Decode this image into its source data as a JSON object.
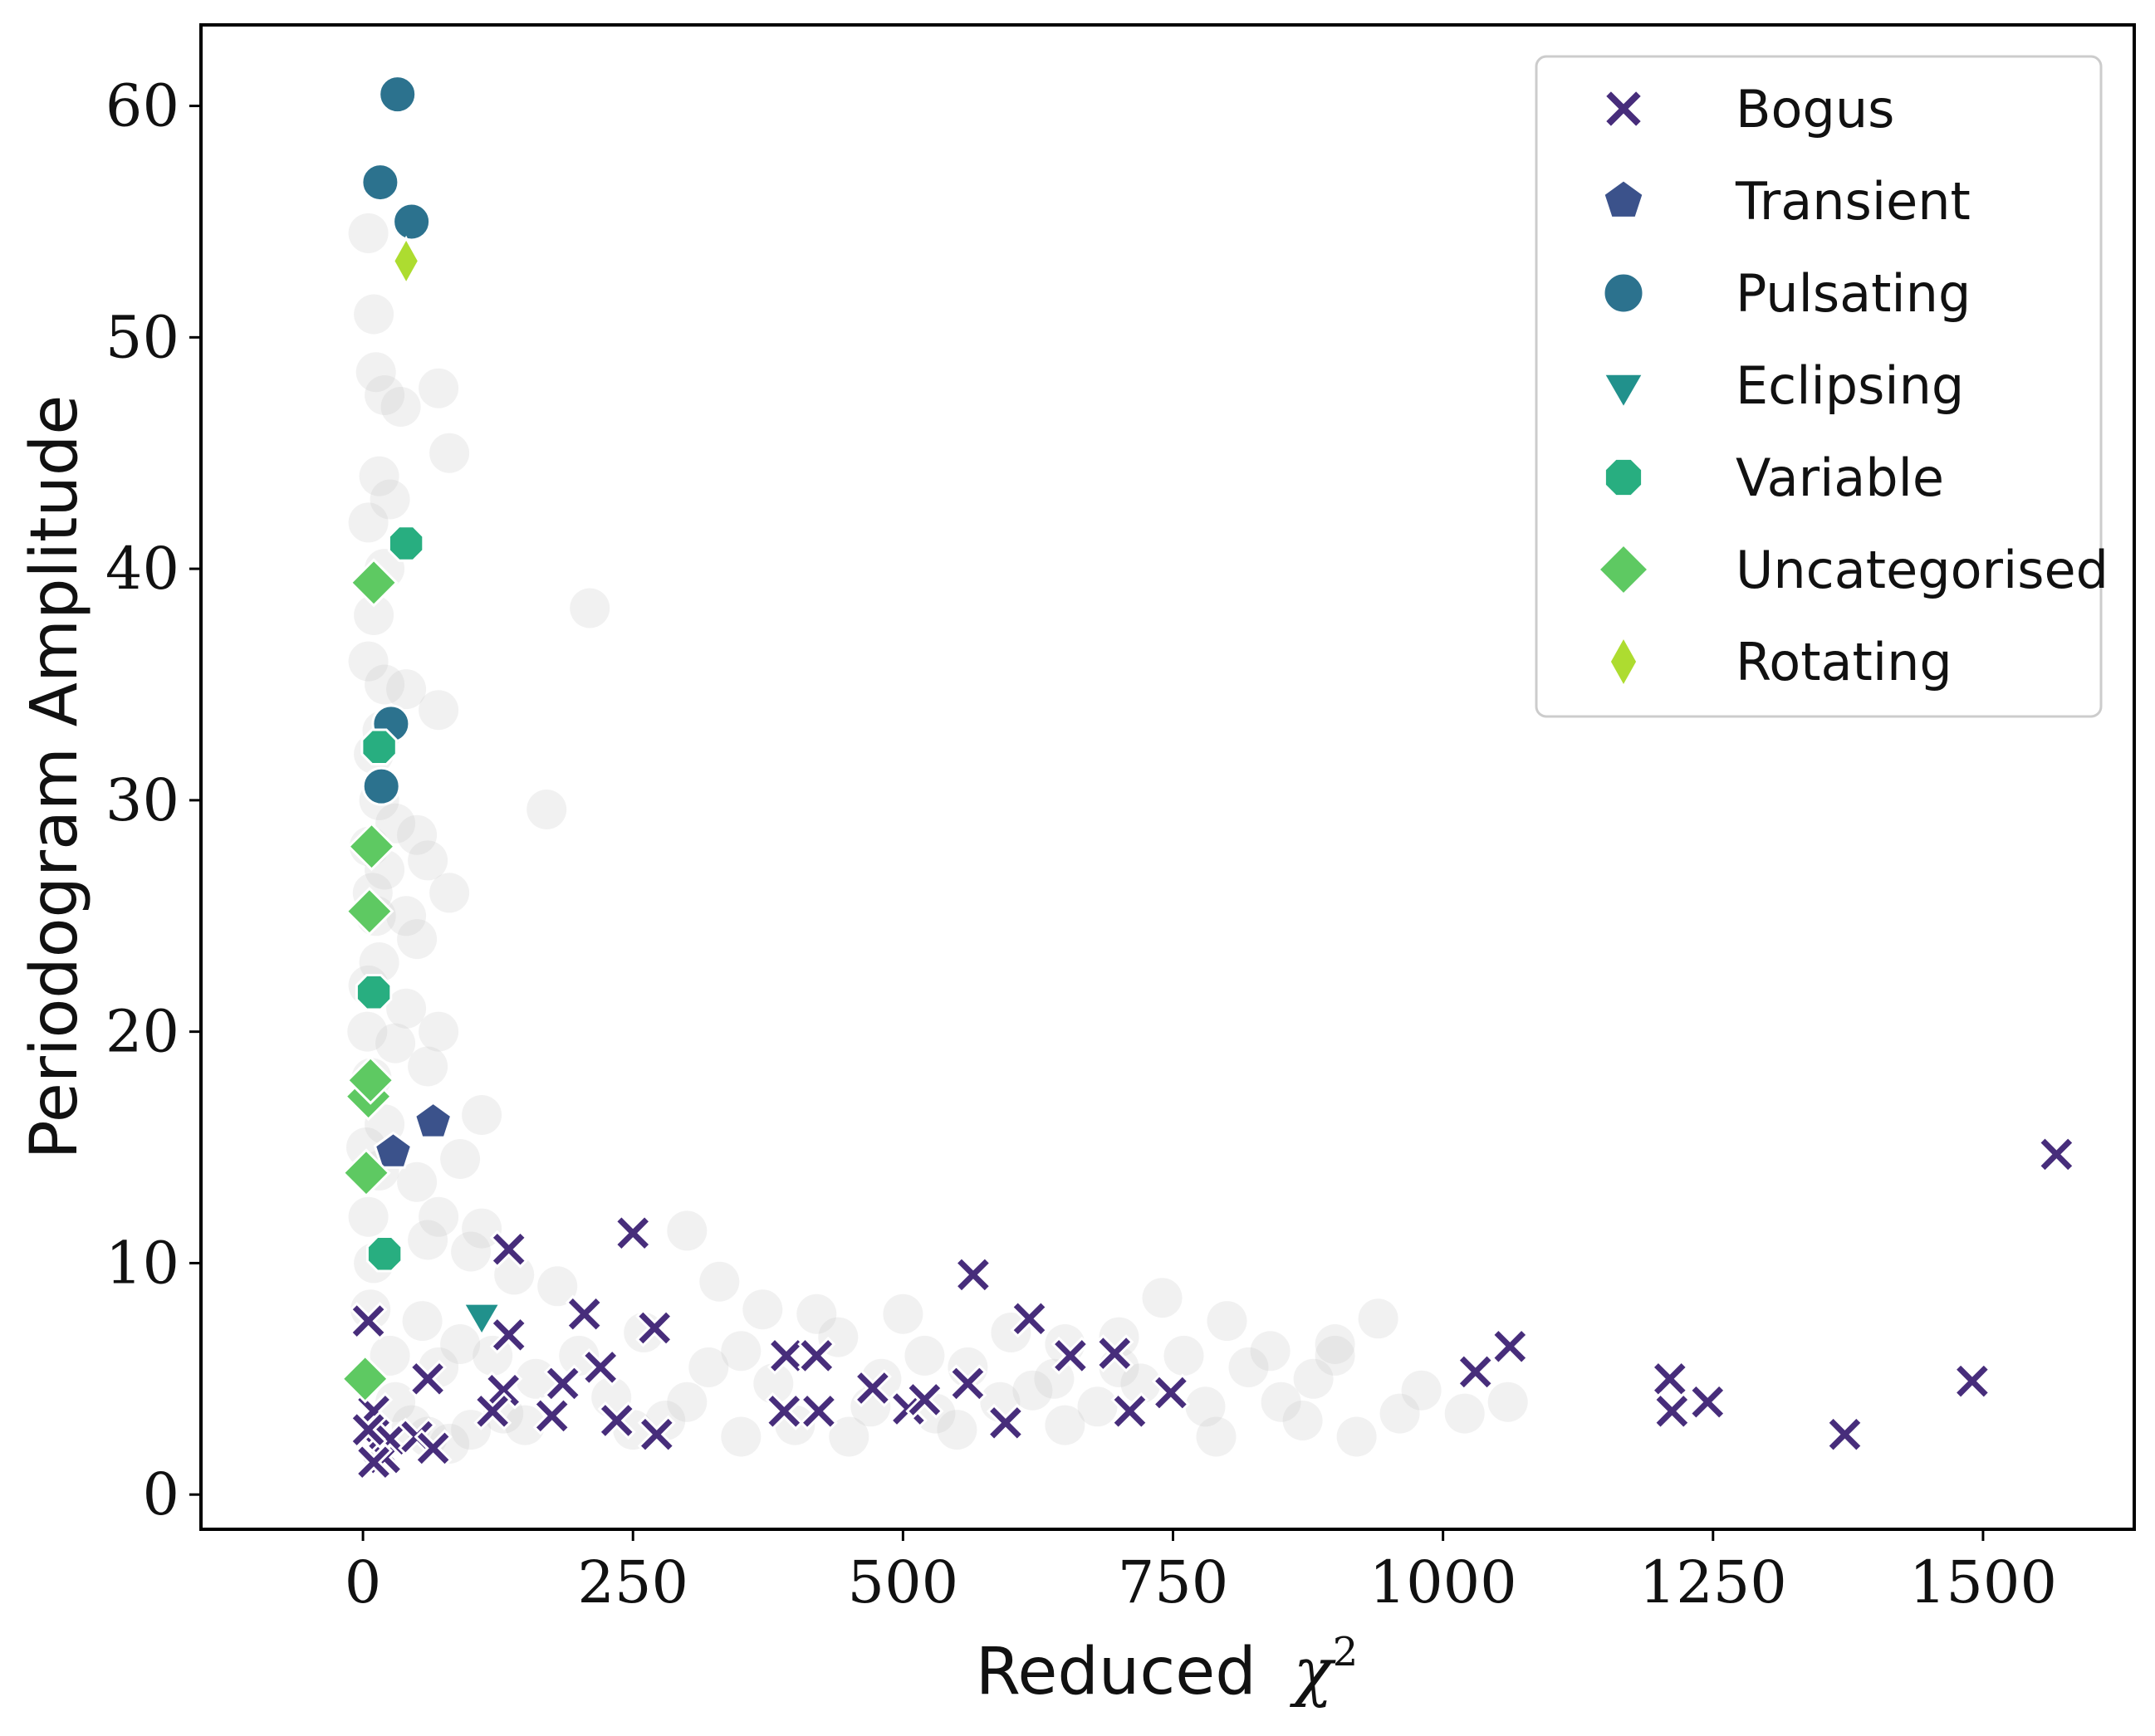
{
  "chart_data": {
    "type": "scatter",
    "xlabel": "Reduced",
    "xlabel_math": "χ",
    "xlabel_exp": "2",
    "ylabel": "Periodogram Amplitude",
    "xlim": [
      -150,
      1640
    ],
    "ylim": [
      -1.5,
      63.5
    ],
    "xticks": [
      0,
      250,
      500,
      750,
      1000,
      1250,
      1500
    ],
    "yticks": [
      0,
      10,
      20,
      30,
      40,
      50,
      60
    ],
    "grid": false,
    "legend_position": "top-right",
    "background_points": {
      "color": "#bdbdbd",
      "points": [
        [
          5,
          54.5
        ],
        [
          10,
          51
        ],
        [
          12,
          48.5
        ],
        [
          20,
          47.5
        ],
        [
          35,
          47
        ],
        [
          70,
          47.8
        ],
        [
          80,
          45
        ],
        [
          15,
          44
        ],
        [
          25,
          43
        ],
        [
          5,
          42
        ],
        [
          20,
          40
        ],
        [
          10,
          38
        ],
        [
          210,
          38.3
        ],
        [
          5,
          36
        ],
        [
          20,
          35
        ],
        [
          40,
          34.8
        ],
        [
          70,
          33.9
        ],
        [
          10,
          32
        ],
        [
          15,
          30
        ],
        [
          170,
          29.6
        ],
        [
          30,
          29
        ],
        [
          50,
          28.5
        ],
        [
          60,
          27.4
        ],
        [
          20,
          27
        ],
        [
          80,
          26
        ],
        [
          40,
          25
        ],
        [
          50,
          24
        ],
        [
          15,
          23
        ],
        [
          5,
          22
        ],
        [
          40,
          21
        ],
        [
          70,
          20
        ],
        [
          30,
          19.5
        ],
        [
          60,
          18.5
        ],
        [
          110,
          16.4
        ],
        [
          20,
          16
        ],
        [
          90,
          14.5
        ],
        [
          50,
          13.5
        ],
        [
          70,
          12
        ],
        [
          110,
          11.5
        ],
        [
          60,
          11
        ],
        [
          100,
          10.5
        ],
        [
          140,
          9.5
        ],
        [
          180,
          9
        ],
        [
          300,
          11.4
        ],
        [
          330,
          9.2
        ],
        [
          370,
          8
        ],
        [
          420,
          7.8
        ],
        [
          500,
          7.8
        ],
        [
          740,
          8.5
        ],
        [
          800,
          7.5
        ],
        [
          940,
          7.6
        ],
        [
          900,
          6.5
        ],
        [
          600,
          7
        ],
        [
          650,
          6.5
        ],
        [
          700,
          6.8
        ],
        [
          760,
          6
        ],
        [
          820,
          5.5
        ],
        [
          880,
          5
        ],
        [
          980,
          4.5
        ],
        [
          1060,
          4
        ],
        [
          1020,
          3.5
        ],
        [
          920,
          2.5
        ],
        [
          790,
          2.5
        ],
        [
          650,
          3
        ],
        [
          550,
          2.8
        ],
        [
          450,
          2.5
        ],
        [
          350,
          2.5
        ],
        [
          250,
          2.8
        ],
        [
          150,
          3
        ],
        [
          200,
          6
        ],
        [
          260,
          7
        ],
        [
          320,
          5.5
        ],
        [
          380,
          4.8
        ],
        [
          440,
          6.8
        ],
        [
          480,
          5
        ],
        [
          520,
          6
        ],
        [
          560,
          5.5
        ],
        [
          620,
          4.5
        ],
        [
          680,
          3.8
        ],
        [
          720,
          4.8
        ],
        [
          850,
          4
        ],
        [
          960,
          3.5
        ],
        [
          840,
          6.2
        ],
        [
          300,
          4
        ],
        [
          400,
          3
        ],
        [
          470,
          3.8
        ],
        [
          530,
          3.5
        ],
        [
          590,
          4
        ],
        [
          640,
          5
        ],
        [
          700,
          5.5
        ],
        [
          780,
          3.8
        ],
        [
          870,
          3.2
        ],
        [
          120,
          6
        ],
        [
          160,
          5
        ],
        [
          230,
          4.2
        ],
        [
          280,
          3.2
        ],
        [
          350,
          6.2
        ],
        [
          900,
          6
        ],
        [
          10,
          10
        ],
        [
          5,
          12
        ],
        [
          15,
          14
        ],
        [
          8,
          18
        ],
        [
          12,
          25
        ],
        [
          6,
          28
        ],
        [
          18,
          33
        ],
        [
          9,
          26
        ],
        [
          4,
          20
        ],
        [
          3,
          15
        ],
        [
          7,
          8
        ],
        [
          25,
          6
        ],
        [
          30,
          4
        ],
        [
          45,
          3
        ],
        [
          60,
          2.5
        ],
        [
          80,
          2.2
        ],
        [
          100,
          2.8
        ],
        [
          130,
          3.5
        ],
        [
          70,
          5.5
        ],
        [
          90,
          6.5
        ],
        [
          55,
          7.5
        ]
      ]
    },
    "series": [
      {
        "name": "Bogus",
        "marker": "x",
        "color": "#472d7b",
        "points": [
          [
            5,
            7.5
          ],
          [
            60,
            5
          ],
          [
            135,
            10.6
          ],
          [
            135,
            6.9
          ],
          [
            130,
            4.5
          ],
          [
            120,
            3.6
          ],
          [
            175,
            3.4
          ],
          [
            185,
            4.8
          ],
          [
            205,
            7.8
          ],
          [
            220,
            5.5
          ],
          [
            235,
            3.2
          ],
          [
            250,
            11.3
          ],
          [
            270,
            7.2
          ],
          [
            272,
            2.6
          ],
          [
            390,
            3.6
          ],
          [
            392,
            6
          ],
          [
            420,
            6
          ],
          [
            422,
            3.6
          ],
          [
            472,
            4.6
          ],
          [
            505,
            3.7
          ],
          [
            520,
            4.1
          ],
          [
            565,
            9.5
          ],
          [
            560,
            4.8
          ],
          [
            595,
            3.1
          ],
          [
            617,
            7.6
          ],
          [
            655,
            6
          ],
          [
            696,
            6.1
          ],
          [
            710,
            3.6
          ],
          [
            748,
            4.4
          ],
          [
            1030,
            5.3
          ],
          [
            1062,
            6.4
          ],
          [
            1210,
            5
          ],
          [
            1212,
            3.6
          ],
          [
            1245,
            4
          ],
          [
            1372,
            2.6
          ],
          [
            1490,
            4.9
          ],
          [
            1568,
            14.7
          ],
          [
            10,
            3.6
          ],
          [
            15,
            2
          ],
          [
            20,
            1.6
          ],
          [
            25,
            2.4
          ],
          [
            10,
            1.4
          ],
          [
            50,
            2.5
          ],
          [
            65,
            2
          ],
          [
            5,
            2.8
          ]
        ]
      },
      {
        "name": "Transient",
        "marker": "pentagon",
        "color": "#3b528b",
        "points": [
          [
            65,
            16.1
          ],
          [
            28,
            14.8
          ]
        ]
      },
      {
        "name": "Pulsating",
        "marker": "circle",
        "color": "#2c728e",
        "points": [
          [
            32,
            60.5
          ],
          [
            16,
            56.7
          ],
          [
            45,
            55
          ],
          [
            26,
            33.3
          ],
          [
            17,
            30.6
          ]
        ]
      },
      {
        "name": "Eclipsing",
        "marker": "triangle-down",
        "color": "#21918c",
        "points": [
          [
            110,
            7.8
          ]
        ]
      },
      {
        "name": "Variable",
        "marker": "octagon",
        "color": "#28ae80",
        "points": [
          [
            40,
            41.1
          ],
          [
            15,
            32.3
          ],
          [
            10,
            21.7
          ],
          [
            20,
            10.4
          ]
        ]
      },
      {
        "name": "Uncategorised",
        "marker": "diamond",
        "color": "#5ec962",
        "points": [
          [
            10,
            39.4
          ],
          [
            8,
            28
          ],
          [
            6,
            25.2
          ],
          [
            5,
            17.2
          ],
          [
            7,
            17.9
          ],
          [
            3,
            13.9
          ],
          [
            2,
            5
          ]
        ]
      },
      {
        "name": "Rotating",
        "marker": "thin-diamond",
        "color": "#addc30",
        "points": [
          [
            40,
            53.3
          ]
        ]
      }
    ]
  }
}
